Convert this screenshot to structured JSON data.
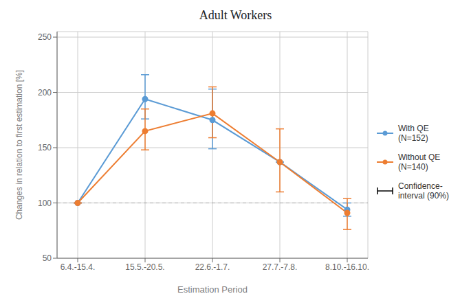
{
  "chart_data": {
    "type": "line",
    "title": "Adult Workers",
    "x_label": "Estimation Period",
    "y_label": "Changes in relation to first estimation [%]",
    "categories": [
      "6.4.-15.4.",
      "15.5.-20.5.",
      "22.6.-1.7.",
      "27.7.-7.8.",
      "8.10.-16.10."
    ],
    "series": [
      {
        "name": "With QE\n(N=152)",
        "color": "#5B9BD5",
        "marker": "circle",
        "values": [
          100,
          194,
          175,
          137,
          94
        ],
        "error_low": [
          0,
          18,
          26,
          0,
          6
        ],
        "error_high": [
          0,
          22,
          28,
          0,
          6
        ]
      },
      {
        "name": "Without QE\n(N=140)",
        "color": "#ED7D31",
        "marker": "circle",
        "values": [
          100,
          165,
          181,
          137,
          91
        ],
        "error_low": [
          0,
          17,
          22,
          27,
          15
        ],
        "error_high": [
          0,
          20,
          24,
          30,
          13
        ]
      }
    ],
    "error_bar_name": "Confidence-\ninterval (90%)",
    "reference_line": 100,
    "ylim": [
      50,
      255
    ],
    "yticks": [
      50,
      100,
      150,
      200,
      250
    ],
    "grid": true,
    "legend": "right"
  }
}
